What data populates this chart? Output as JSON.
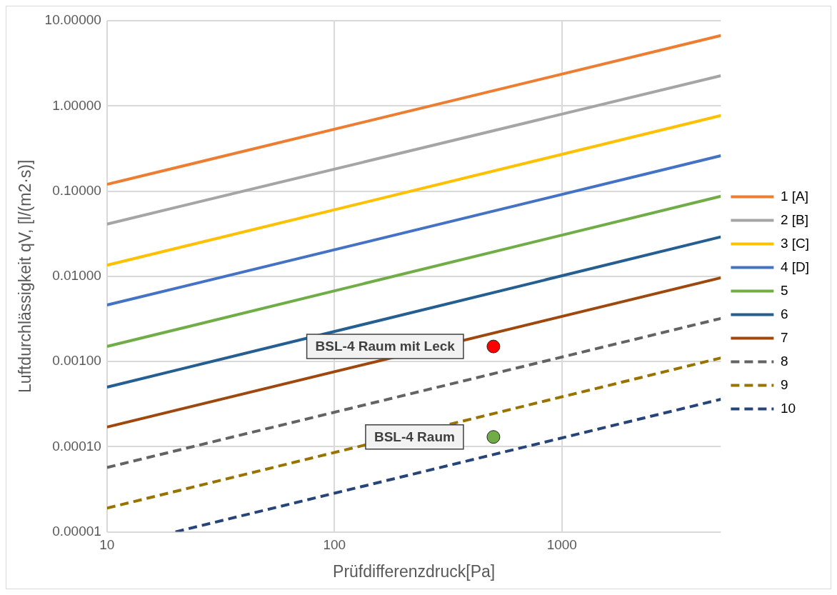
{
  "chart_data": {
    "type": "line",
    "xlabel": "Prüfdifferenzdruck[Pa]",
    "ylabel": "Luftdurchlässigkeit qV, [l/(m2·s)]",
    "log": "xy",
    "grid": true,
    "legend": "right",
    "marker": "none",
    "xlim": [
      10,
      5000
    ],
    "xticks": [
      10,
      100,
      1000
    ],
    "ylim": [
      1e-05,
      10
    ],
    "yticks": [
      {
        "value": 1e-05,
        "label": "0.00001"
      },
      {
        "value": 0.0001,
        "label": "0.00010"
      },
      {
        "value": 0.001,
        "label": "0.00100"
      },
      {
        "value": 0.01,
        "label": "0.01000"
      },
      {
        "value": 0.1,
        "label": "0.10000"
      },
      {
        "value": 1,
        "label": "1.00000"
      },
      {
        "value": 10,
        "label": "10.00000"
      }
    ],
    "series": [
      {
        "name": "1 [A]",
        "color": "#ed7d31",
        "x": [
          10,
          5000
        ],
        "values": [
          0.12,
          6.7
        ],
        "line_style": "solid"
      },
      {
        "name": "2 [B]",
        "color": "#a5a5a5",
        "x": [
          10,
          5000
        ],
        "values": [
          0.041,
          2.26
        ],
        "line_style": "solid"
      },
      {
        "name": "3 [C]",
        "color": "#ffc000",
        "x": [
          10,
          5000
        ],
        "values": [
          0.0135,
          0.77
        ],
        "line_style": "solid"
      },
      {
        "name": "4 [D]",
        "color": "#4472c4",
        "x": [
          10,
          5000
        ],
        "values": [
          0.0046,
          0.26
        ],
        "line_style": "solid"
      },
      {
        "name": "5",
        "color": "#70ad47",
        "x": [
          10,
          5000
        ],
        "values": [
          0.0015,
          0.087
        ],
        "line_style": "solid"
      },
      {
        "name": "6",
        "color": "#255e91",
        "x": [
          10,
          5000
        ],
        "values": [
          0.0005,
          0.029
        ],
        "line_style": "solid"
      },
      {
        "name": "7",
        "color": "#9e480e",
        "x": [
          10,
          5000
        ],
        "values": [
          0.00017,
          0.0096
        ],
        "line_style": "solid"
      },
      {
        "name": "8",
        "color": "#636363",
        "x": [
          10,
          5000
        ],
        "values": [
          5.7e-05,
          0.0032
        ],
        "line_style": "dashed"
      },
      {
        "name": "9",
        "color": "#997300",
        "x": [
          10,
          5000
        ],
        "values": [
          1.9e-05,
          0.0011
        ],
        "line_style": "dashed"
      },
      {
        "name": "10",
        "color": "#264478",
        "x": [
          20,
          5000
        ],
        "values": [
          1e-05,
          0.00036
        ],
        "line_style": "dashed"
      },
      {
        "type": "scatter",
        "marker": "circle",
        "color": "#ff0000",
        "x": [
          500
        ],
        "values": [
          0.0015
        ]
      },
      {
        "type": "scatter",
        "marker": "circle",
        "color": "#70ad47",
        "x": [
          500
        ],
        "values": [
          0.00013
        ]
      }
    ],
    "annotations": [
      {
        "text": "BSL-4 Raum mit Leck",
        "x": 500,
        "y": 0.0015
      },
      {
        "text": "BSL-4 Raum",
        "x": 500,
        "y": 0.00013
      }
    ]
  }
}
